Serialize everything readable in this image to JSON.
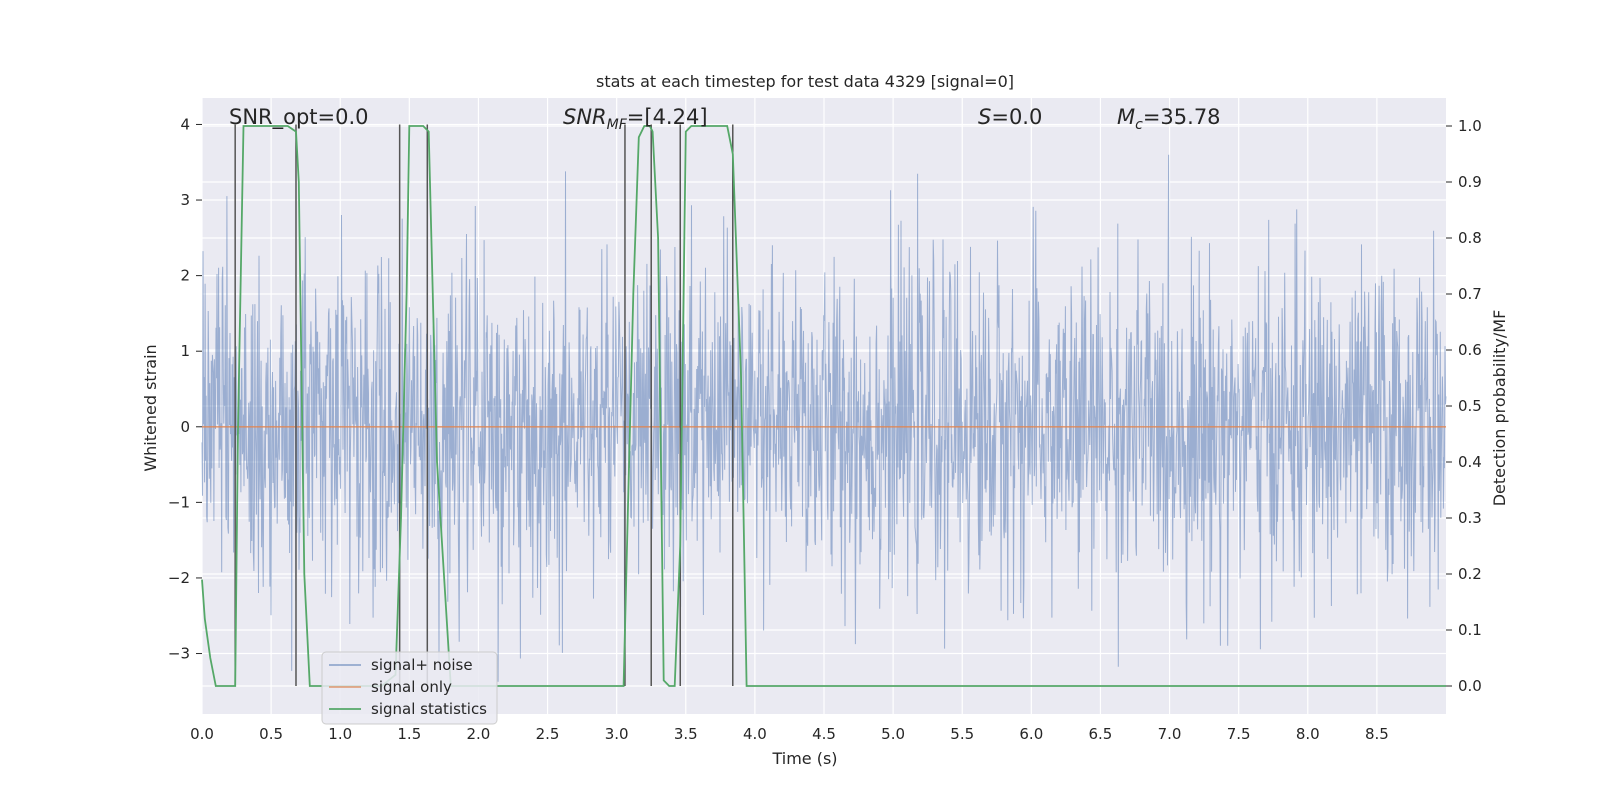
{
  "chart_data": {
    "type": "line",
    "title": "stats at each timestep for test data 4329 [signal=0]",
    "xlabel": "Time (s)",
    "ylabel_left": "Whitened strain",
    "ylabel_right": "Detection probability/MF",
    "xlim": [
      0,
      9.0
    ],
    "ylim_left": [
      -3.8,
      4.35
    ],
    "ylim_right": [
      -0.05,
      1.05
    ],
    "xticks": [
      "0.0",
      "0.5",
      "1.0",
      "1.5",
      "2.0",
      "2.5",
      "3.0",
      "3.5",
      "4.0",
      "4.5",
      "5.0",
      "5.5",
      "6.0",
      "6.5",
      "7.0",
      "7.5",
      "8.0",
      "8.5"
    ],
    "xtick_values": [
      0,
      0.5,
      1,
      1.5,
      2,
      2.5,
      3,
      3.5,
      4,
      4.5,
      5,
      5.5,
      6,
      6.5,
      7,
      7.5,
      8,
      8.5
    ],
    "yticks_left": [
      "−3",
      "−2",
      "−1",
      "0",
      "1",
      "2",
      "3",
      "4"
    ],
    "ytick_values_left": [
      -3,
      -2,
      -1,
      0,
      1,
      2,
      3,
      4
    ],
    "yticks_right": [
      "0.0",
      "0.1",
      "0.2",
      "0.3",
      "0.4",
      "0.5",
      "0.6",
      "0.7",
      "0.8",
      "0.9",
      "1.0"
    ],
    "ytick_values_right": [
      0,
      0.1,
      0.2,
      0.3,
      0.4,
      0.5,
      0.6,
      0.7,
      0.8,
      0.9,
      1.0
    ],
    "annotations": {
      "snr_opt": "SNR_opt=0.0",
      "snr_mf_base": "SNR",
      "snr_mf_sub": "MF",
      "snr_mf_value": "=[4.24]",
      "s_sym": "S",
      "s_value": "=0.0",
      "mc_base": "M",
      "mc_sub": "c",
      "mc_value": "=35.78"
    },
    "legend": {
      "position": "lower-left",
      "entries": [
        "signal+ noise",
        "signal only",
        "signal statistics"
      ]
    },
    "series": [
      {
        "name": "signal+ noise",
        "axis": "left",
        "color": "#4c72b0",
        "description": "whitened noise trace, roughly zero-mean, peaks to about ±3.4",
        "amplitude_typical": 2.0,
        "max": 4.0,
        "min": -3.4
      },
      {
        "name": "signal only",
        "axis": "left",
        "color": "#dd8452",
        "x": [
          0,
          9.0
        ],
        "y": [
          0,
          0
        ]
      },
      {
        "name": "signal statistics",
        "axis": "right",
        "color": "#55a868",
        "x": [
          0.0,
          0.02,
          0.06,
          0.1,
          0.2,
          0.24,
          0.26,
          0.3,
          0.5,
          0.62,
          0.68,
          0.7,
          0.74,
          0.78,
          1.0,
          1.3,
          1.4,
          1.44,
          1.48,
          1.5,
          1.6,
          1.64,
          1.7,
          1.8,
          2.5,
          3.05,
          3.08,
          3.12,
          3.16,
          3.2,
          3.24,
          3.26,
          3.3,
          3.34,
          3.38,
          3.42,
          3.46,
          3.5,
          3.54,
          3.6,
          3.7,
          3.8,
          3.84,
          3.9,
          3.94,
          4.0,
          5.0,
          6.0,
          7.0,
          8.0,
          9.0
        ],
        "y": [
          0.19,
          0.12,
          0.05,
          0.0,
          0.0,
          0.0,
          0.45,
          1.0,
          1.0,
          1.0,
          0.99,
          0.9,
          0.2,
          0.0,
          0.0,
          0.0,
          0.02,
          0.3,
          0.7,
          1.0,
          1.0,
          0.99,
          0.4,
          0.0,
          0.0,
          0.0,
          0.3,
          0.7,
          0.98,
          1.0,
          1.0,
          0.99,
          0.8,
          0.01,
          0.0,
          0.0,
          0.25,
          0.99,
          1.0,
          1.0,
          1.0,
          1.0,
          0.95,
          0.55,
          0.0,
          0.0,
          0.0,
          0.0,
          0.0,
          0.0,
          0.0
        ]
      }
    ],
    "vertical_markers": {
      "color": "#555555",
      "x": [
        0.24,
        0.68,
        1.43,
        1.63,
        3.06,
        3.25,
        3.46,
        3.84
      ],
      "y_top": 4.0
    }
  }
}
